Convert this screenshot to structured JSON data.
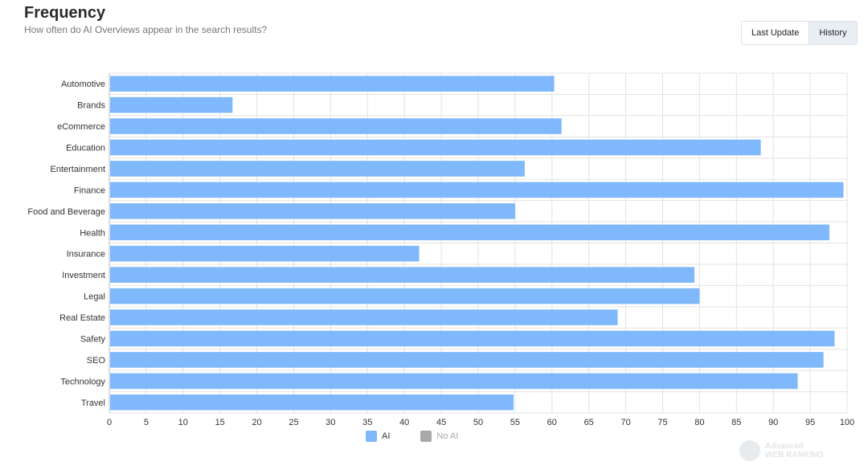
{
  "header": {
    "title": "Frequency",
    "subtitle": "How often do AI Overviews appear in the search results?"
  },
  "toggle": {
    "last_update_label": "Last Update",
    "history_label": "History",
    "active": "History"
  },
  "legend": [
    {
      "name": "AI",
      "color": "#7fb9fb",
      "active": true
    },
    {
      "name": "No AI",
      "color": "#a9a9a9",
      "active": false
    }
  ],
  "watermark": {
    "line1": "Advanced",
    "line2": "WEB RANKING"
  },
  "chart_data": {
    "type": "bar",
    "orientation": "horizontal",
    "categories": [
      "Automotive",
      "Brands",
      "eCommerce",
      "Education",
      "Entertainment",
      "Finance",
      "Food and Beverage",
      "Health",
      "Insurance",
      "Investment",
      "Legal",
      "Real Estate",
      "Safety",
      "SEO",
      "Technology",
      "Travel"
    ],
    "series": [
      {
        "name": "AI",
        "color": "#7fb9fb",
        "values": [
          60.3,
          16.7,
          61.3,
          88.3,
          56.3,
          99.5,
          55.0,
          97.6,
          42.0,
          79.3,
          80.0,
          68.9,
          98.3,
          96.8,
          93.3,
          54.8
        ]
      }
    ],
    "xlim": [
      0,
      100
    ],
    "xticks": [
      0,
      5,
      10,
      15,
      20,
      25,
      30,
      35,
      40,
      45,
      50,
      55,
      60,
      65,
      70,
      75,
      80,
      85,
      90,
      95,
      100
    ],
    "grid": true,
    "legend_position": "bottom"
  }
}
